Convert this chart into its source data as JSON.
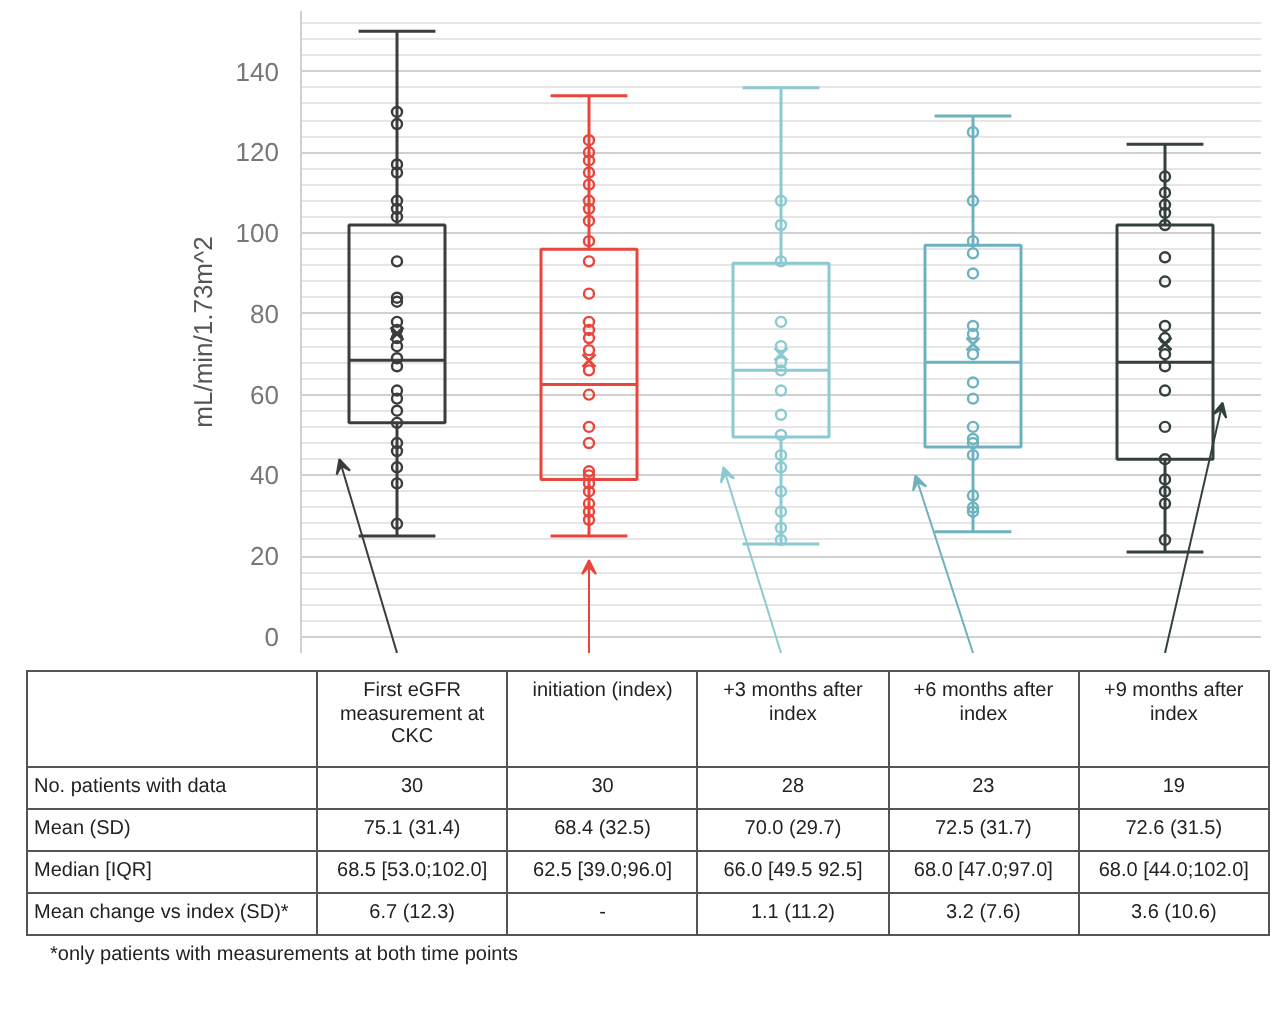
{
  "chart_data": {
    "type": "box",
    "ylabel": "mL/min/1.73m^2",
    "categories": [
      "First eGFR measurement at CKC",
      "initiation (index)",
      "+3 months after index",
      "+6 months after index",
      "+9 months after index"
    ],
    "colors": [
      "#3c3c3c",
      "#e8453c",
      "#8ccad2",
      "#6eb2bf",
      "#34403f"
    ],
    "boxes": [
      {
        "low": 25,
        "q1": 53,
        "median": 68.5,
        "q3": 102,
        "high": 150,
        "mean": 75.1
      },
      {
        "low": 25,
        "q1": 39,
        "median": 62.5,
        "q3": 96,
        "high": 134,
        "mean": 68.4
      },
      {
        "low": 23,
        "q1": 49.5,
        "median": 66,
        "q3": 92.5,
        "high": 136,
        "mean": 70.0
      },
      {
        "low": 26,
        "q1": 47,
        "median": 68,
        "q3": 97,
        "high": 129,
        "mean": 72.5
      },
      {
        "low": 21,
        "q1": 44,
        "median": 68,
        "q3": 102,
        "high": 122,
        "mean": 72.6
      }
    ],
    "series": [
      {
        "type": "scatter",
        "color": "#3c3c3c",
        "x": [
          "First eGFR measurement at CKC",
          "First eGFR measurement at CKC",
          "First eGFR measurement at CKC",
          "First eGFR measurement at CKC",
          "First eGFR measurement at CKC",
          "First eGFR measurement at CKC",
          "First eGFR measurement at CKC",
          "First eGFR measurement at CKC",
          "First eGFR measurement at CKC",
          "First eGFR measurement at CKC",
          "First eGFR measurement at CKC",
          "First eGFR measurement at CKC",
          "First eGFR measurement at CKC",
          "First eGFR measurement at CKC",
          "First eGFR measurement at CKC",
          "First eGFR measurement at CKC",
          "First eGFR measurement at CKC",
          "First eGFR measurement at CKC",
          "First eGFR measurement at CKC",
          "First eGFR measurement at CKC",
          "First eGFR measurement at CKC",
          "First eGFR measurement at CKC",
          "First eGFR measurement at CKC",
          "First eGFR measurement at CKC",
          "First eGFR measurement at CKC"
        ],
        "values": [
          130,
          127,
          117,
          115,
          108,
          106,
          104,
          93,
          84,
          83,
          78,
          76,
          74,
          72,
          69,
          67,
          61,
          59,
          56,
          53,
          48,
          46,
          42,
          38,
          28
        ]
      },
      {
        "type": "scatter",
        "color": "#e8453c",
        "x": [
          "initiation (index)",
          "initiation (index)",
          "initiation (index)",
          "initiation (index)",
          "initiation (index)",
          "initiation (index)",
          "initiation (index)",
          "initiation (index)",
          "initiation (index)",
          "initiation (index)",
          "initiation (index)",
          "initiation (index)",
          "initiation (index)",
          "initiation (index)",
          "initiation (index)",
          "initiation (index)",
          "initiation (index)",
          "initiation (index)",
          "initiation (index)",
          "initiation (index)",
          "initiation (index)",
          "initiation (index)",
          "initiation (index)",
          "initiation (index)",
          "initiation (index)",
          "initiation (index)"
        ],
        "values": [
          123,
          120,
          118,
          115,
          112,
          108,
          106,
          103,
          98,
          93,
          85,
          78,
          76,
          74,
          71,
          66,
          60,
          52,
          48,
          41,
          40,
          38,
          36,
          33,
          31,
          29
        ]
      },
      {
        "type": "scatter",
        "color": "#8ccad2",
        "x": [
          "+3 months after index",
          "+3 months after index",
          "+3 months after index",
          "+3 months after index",
          "+3 months after index",
          "+3 months after index",
          "+3 months after index",
          "+3 months after index",
          "+3 months after index",
          "+3 months after index",
          "+3 months after index",
          "+3 months after index",
          "+3 months after index",
          "+3 months after index",
          "+3 months after index",
          "+3 months after index"
        ],
        "values": [
          108,
          102,
          93,
          78,
          72,
          68,
          66,
          61,
          55,
          50,
          45,
          42,
          36,
          31,
          27,
          24
        ]
      },
      {
        "type": "scatter",
        "color": "#6eb2bf",
        "x": [
          "+6 months after index",
          "+6 months after index",
          "+6 months after index",
          "+6 months after index",
          "+6 months after index",
          "+6 months after index",
          "+6 months after index",
          "+6 months after index",
          "+6 months after index",
          "+6 months after index",
          "+6 months after index",
          "+6 months after index",
          "+6 months after index",
          "+6 months after index",
          "+6 months after index",
          "+6 months after index",
          "+6 months after index"
        ],
        "values": [
          125,
          108,
          98,
          95,
          90,
          77,
          75,
          70,
          63,
          59,
          52,
          49,
          48,
          45,
          35,
          32,
          31
        ]
      },
      {
        "type": "scatter",
        "color": "#34403f",
        "x": [
          "+9 months after index",
          "+9 months after index",
          "+9 months after index",
          "+9 months after index",
          "+9 months after index",
          "+9 months after index",
          "+9 months after index",
          "+9 months after index",
          "+9 months after index",
          "+9 months after index",
          "+9 months after index",
          "+9 months after index",
          "+9 months after index",
          "+9 months after index",
          "+9 months after index",
          "+9 months after index",
          "+9 months after index",
          "+9 months after index"
        ],
        "values": [
          114,
          110,
          107,
          105,
          102,
          94,
          88,
          77,
          74,
          70,
          67,
          61,
          52,
          44,
          39,
          36,
          33,
          24
        ]
      }
    ],
    "marker": "circle",
    "ylim": [
      -4,
      155
    ],
    "yticks": [
      0,
      20,
      40,
      60,
      80,
      100,
      120,
      140
    ],
    "grid": "y",
    "annotations": [
      "No. patients with data",
      "Mean (SD)",
      "Median [IQR]",
      "Mean change vs index (SD)*",
      "30",
      "30",
      "28",
      "23",
      "19",
      "75.1 (31.4)",
      "68.4 (32.5)",
      "70.0 (29.7)",
      "72.5 (31.7)",
      "72.6 (31.5)",
      "68.5 [53.0;102.0]",
      "62.5 [39.0;96.0]",
      "66.0 [49.5 92.5]",
      "68.0 [47.0;97.0]",
      "68.0 [44.0;102.0]",
      "6.7 (12.3)",
      "-",
      "1.1 (11.2)",
      "3.2 (7.6)",
      "3.6 (10.6)",
      "*only patients with measurements at both time points"
    ]
  }
}
